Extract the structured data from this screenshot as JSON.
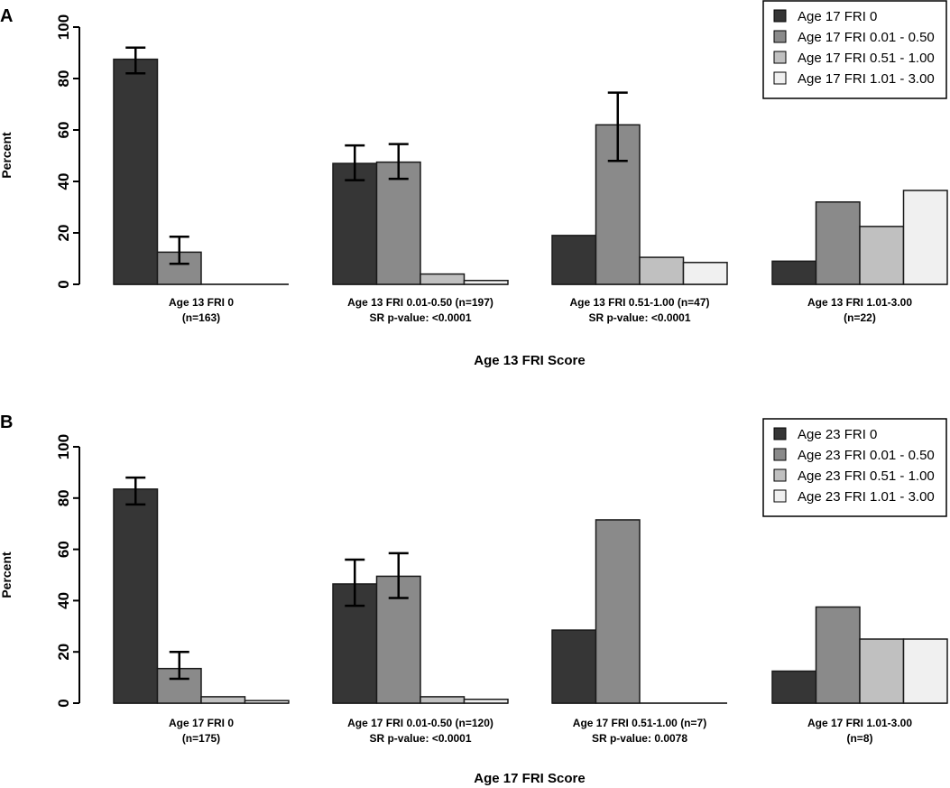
{
  "colors": {
    "fri_0": "#363636",
    "fri_001_050": "#8a8a8a",
    "fri_051_100": "#c0c0c0",
    "fri_101_300": "#f0f0f0"
  },
  "chart_data": [
    {
      "panel": "A",
      "type": "bar",
      "ylabel": "Percent",
      "xlabel": "Age 13 FRI Score",
      "ylim": [
        0,
        100
      ],
      "yticks": [
        0,
        20,
        40,
        60,
        80,
        100
      ],
      "legend_position": "top-right",
      "categories": [
        {
          "line1": "Age 13 FRI 0",
          "line2": "(n=163)"
        },
        {
          "line1": "Age 13 FRI 0.01-0.50 (n=197)",
          "line2": "SR p-value: <0.0001"
        },
        {
          "line1": "Age 13 FRI 0.51-1.00 (n=47)",
          "line2": "SR p-value: <0.0001"
        },
        {
          "line1": "Age 13 FRI 1.01-3.00",
          "line2": "(n=22)"
        }
      ],
      "series": [
        {
          "name": "Age 17 FRI 0",
          "values": [
            87.5,
            47.0,
            19.0,
            9.0
          ],
          "error_low": [
            82.0,
            40.5,
            null,
            null
          ],
          "error_high": [
            92.0,
            54.0,
            null,
            null
          ]
        },
        {
          "name": "Age 17 FRI 0.01 - 0.50",
          "values": [
            12.5,
            47.5,
            62.0,
            32.0
          ],
          "error_low": [
            8.0,
            41.0,
            48.0,
            null
          ],
          "error_high": [
            18.5,
            54.5,
            74.5,
            null
          ]
        },
        {
          "name": "Age 17 FRI 0.51 - 1.00",
          "values": [
            0,
            4.0,
            10.5,
            22.5
          ],
          "error_low": [
            null,
            null,
            null,
            null
          ],
          "error_high": [
            null,
            null,
            null,
            null
          ]
        },
        {
          "name": "Age 17 FRI 1.01 - 3.00",
          "values": [
            0,
            1.5,
            8.5,
            36.5
          ],
          "error_low": [
            null,
            null,
            null,
            null
          ],
          "error_high": [
            null,
            null,
            null,
            null
          ]
        }
      ]
    },
    {
      "panel": "B",
      "type": "bar",
      "ylabel": "Percent",
      "xlabel": "Age 17 FRI Score",
      "ylim": [
        0,
        100
      ],
      "yticks": [
        0,
        20,
        40,
        60,
        80,
        100
      ],
      "legend_position": "top-right",
      "categories": [
        {
          "line1": "Age 17 FRI 0",
          "line2": "(n=175)"
        },
        {
          "line1": "Age 17 FRI 0.01-0.50 (n=120)",
          "line2": "SR p-value: <0.0001"
        },
        {
          "line1": "Age 17 FRI 0.51-1.00 (n=7)",
          "line2": "SR p-value: 0.0078"
        },
        {
          "line1": "Age 17 FRI 1.01-3.00",
          "line2": "(n=8)"
        }
      ],
      "series": [
        {
          "name": "Age 23 FRI 0",
          "values": [
            83.5,
            46.5,
            28.5,
            12.5
          ],
          "error_low": [
            77.5,
            38.0,
            null,
            null
          ],
          "error_high": [
            88.0,
            56.0,
            null,
            null
          ]
        },
        {
          "name": "Age 23 FRI 0.01 - 0.50",
          "values": [
            13.5,
            49.5,
            71.5,
            37.5
          ],
          "error_low": [
            9.5,
            41.0,
            null,
            null
          ],
          "error_high": [
            20.0,
            58.5,
            null,
            null
          ]
        },
        {
          "name": "Age 23 FRI 0.51 - 1.00",
          "values": [
            2.5,
            2.5,
            0,
            25.0
          ],
          "error_low": [
            null,
            null,
            null,
            null
          ],
          "error_high": [
            null,
            null,
            null,
            null
          ]
        },
        {
          "name": "Age 23 FRI 1.01 - 3.00",
          "values": [
            1.0,
            1.5,
            0,
            25.0
          ],
          "error_low": [
            null,
            null,
            null,
            null
          ],
          "error_high": [
            null,
            null,
            null,
            null
          ]
        }
      ]
    }
  ]
}
